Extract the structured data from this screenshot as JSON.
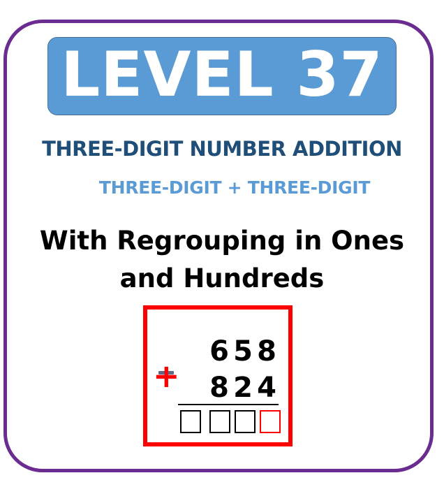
{
  "banner": {
    "level_label": "LEVEL 37"
  },
  "titles": {
    "main": "THREE-DIGIT NUMBER ADDITION",
    "sub": "THREE-DIGIT + THREE-DIGIT"
  },
  "description": {
    "line1": "With Regrouping in Ones",
    "line2": "and Hundreds"
  },
  "problem": {
    "operator": "+",
    "addend1": [
      "6",
      "5",
      "8"
    ],
    "addend2": [
      "8",
      "2",
      "4"
    ],
    "answer_boxes": 4
  },
  "colors": {
    "frame": "#6a2c91",
    "banner": "#5b9bd5",
    "title_main": "#1f4e79",
    "title_sub": "#5b9bd5",
    "problem_border": "#ff0000",
    "ones_box": "#ff0000"
  }
}
